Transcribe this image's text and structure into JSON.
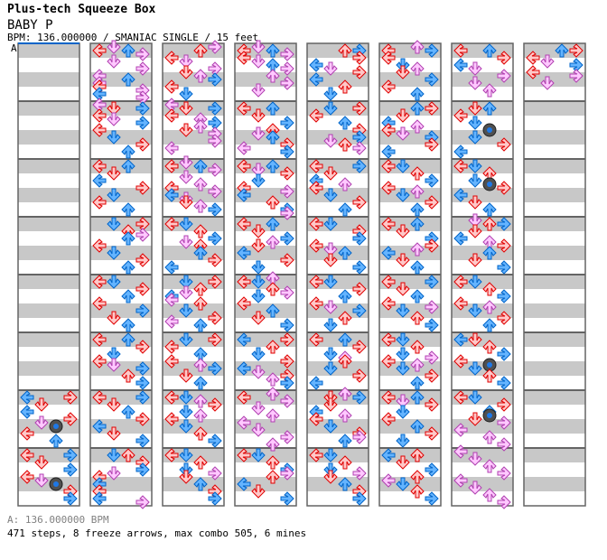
{
  "header": {
    "site_title": "Plus-tech Squeeze Box",
    "song_title": "BABY P",
    "info": "BPM: 136.000000 / SMANIAC SINGLE / 15 feet",
    "section_label": "A"
  },
  "footer": {
    "bpm_line": "A: 136.000000 BPM",
    "stats": "471 steps, 8 freeze arrows, max combo 505, 6 mines"
  },
  "colors": {
    "quarter": [
      "#ffc8c8",
      "#e00000"
    ],
    "eighth": [
      "#64b4ff",
      "#0064c8"
    ],
    "sixteenth": [
      "#ffc8ff",
      "#b040b0"
    ],
    "stripe": "#c8c8c8",
    "border": "#646464",
    "start_marker": "#0064c8"
  },
  "chart_data": {
    "type": "table",
    "lanes": [
      "L",
      "D",
      "U",
      "R"
    ],
    "measures_per_column": 8,
    "rows_per_measure": 16,
    "columns": [
      "................ ................ ................ ................ ................ ................ R.L.D.L.RDm.L.U. L.R.D.R.LDm.R.R.",
      "LDUR.D.R.LULLRLR DLR.LDR.L.D.R.U. L.U.D.L.R.D.L.U. R.D.URU.L.D.R.U. L.D.R.U.L.R.D.U. L.U.R.D.LDR.U.R. L.R.D.U.R.L.D.R. U.D.R.RDL.L.L.LR",
      "UR..LD.RDUR.L.D. DLR.LURUDR.R.L.. LDUR.D.ULRLDDUR. L.D.U.RDU.U.R.L. R.D.UDLLU.D.RLU. R.D.L.U.LUR.D.U. L.DUR.DUL.D.U.R. L.D.U.DRD.U.R.R.",
      "LDURLDUR.U.R.D.. L.U.D.R.UDU.RLR. L.UDR.D.LRL.U.RR L.U.D.RUD.L.R.D. LUD.URD.L.U.D.R. R.L.U.D.R.LDRUR. LU.R.D.U.L.D.R.U L.D.U.RRU.L.D.R.",
      "U.R.R.LDR.L.U.D. R.D.L.U.R.RDUR.. L.R.D.LUL.D.R.U. L.D.R.R.LDU.D.R. L.D.R.U.LDR.U.D. L.U.R.DUU.D.R.L. DUR.D.LUL.D.RRU. L.D.U.DRD.U.R.R.",
      "LUR.L.DUD.R.L.U. R.U.D.LULDR.R.L. L.D.U.R.LUD.R.U. L.U.D.R.RUL.D.U. L.R.D.U.LRD.U.R. L.D.U.DRLUD.R.U. L.UDR.D.L.U.R.D. U.L.D.R.ULD.U.R.",
      "L.U.R.LD.R.D.U.. D.U.L.D.m.D.R.L. L.D.U.DmR.L.D.U. UDR.D.LUR.U.D.R. L.D.U.R.LUD.R.U. D.L.U.R.LmD.U.R. L.D.R.UmDR.L.U.R. L.D.U.R.L.D.U.R.",
      "R.U.LDR.LR.D.... ................ ................ ................ ................ ................ ................ ................"
    ]
  }
}
